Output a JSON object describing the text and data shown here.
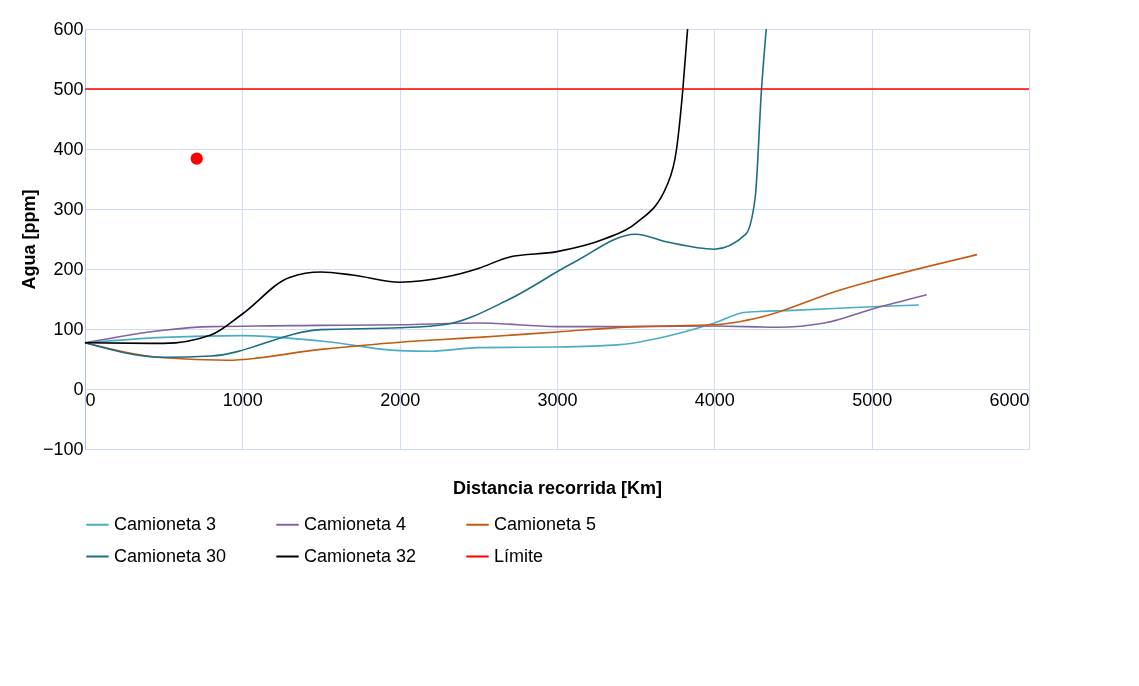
{
  "chart_data": {
    "type": "line",
    "xlabel": "Distancia recorrida [Km]",
    "ylabel": "Agua [ppm]",
    "xlim": [
      0,
      6000
    ],
    "xticks": [
      0,
      1000,
      2000,
      3000,
      4000,
      5000,
      6000
    ],
    "ylim": [
      -100,
      600
    ],
    "yticks": [
      -100,
      0,
      100,
      200,
      300,
      400,
      500,
      600
    ],
    "grid": true,
    "legend": "bottom",
    "line_style": "solid",
    "series": [
      {
        "name": "Camioneta 3",
        "color": "#4bacc6",
        "x": [
          0,
          500,
          1000,
          1500,
          2000,
          2200,
          2500,
          3000,
          3400,
          3700,
          4000,
          4200,
          4500,
          5000,
          5300
        ],
        "values": [
          77,
          86,
          89,
          80,
          64,
          63,
          69,
          70,
          74,
          88,
          110,
          128,
          131,
          137,
          140
        ]
      },
      {
        "name": "Camioneta 4",
        "color": "#8064a2",
        "x": [
          0,
          500,
          800,
          1500,
          2000,
          2500,
          3000,
          3500,
          4000,
          4400,
          4700,
          5000,
          5350
        ],
        "values": [
          77,
          98,
          104,
          106,
          107,
          110,
          104,
          104,
          105,
          103,
          110,
          133,
          157
        ]
      },
      {
        "name": "Camioneta 5",
        "color": "#c55a11",
        "x": [
          0,
          500,
          900,
          1500,
          2000,
          2500,
          3000,
          3500,
          4000,
          4300,
          4800,
          5000,
          5670
        ],
        "values": [
          77,
          52,
          48,
          66,
          78,
          86,
          95,
          104,
          107,
          120,
          165,
          180,
          224
        ]
      },
      {
        "name": "Camioneta 30",
        "color": "#1f6e80",
        "x": [
          0,
          500,
          800,
          1500,
          2000,
          2300,
          2700,
          3100,
          3500,
          3700,
          4000,
          4200,
          4260,
          4300,
          4330
        ],
        "values": [
          77,
          53,
          55,
          99,
          102,
          108,
          150,
          210,
          258,
          245,
          233,
          258,
          320,
          500,
          600
        ]
      },
      {
        "name": "Camioneta 32",
        "color": "#000000",
        "x": [
          0,
          500,
          800,
          1000,
          1300,
          1500,
          1700,
          2000,
          2300,
          2500,
          2700,
          3000,
          3300,
          3500,
          3700,
          3760,
          3800,
          3830
        ],
        "values": [
          77,
          76,
          90,
          125,
          186,
          195,
          190,
          178,
          187,
          201,
          220,
          229,
          250,
          276,
          340,
          400,
          500,
          600
        ]
      },
      {
        "name": "Límite",
        "color": "#ff0000",
        "x": [
          0,
          6000
        ],
        "values": [
          500,
          500
        ]
      },
      {
        "type": "scatter",
        "color": "#ff0000",
        "x": [
          710
        ],
        "values": [
          384
        ]
      }
    ]
  }
}
